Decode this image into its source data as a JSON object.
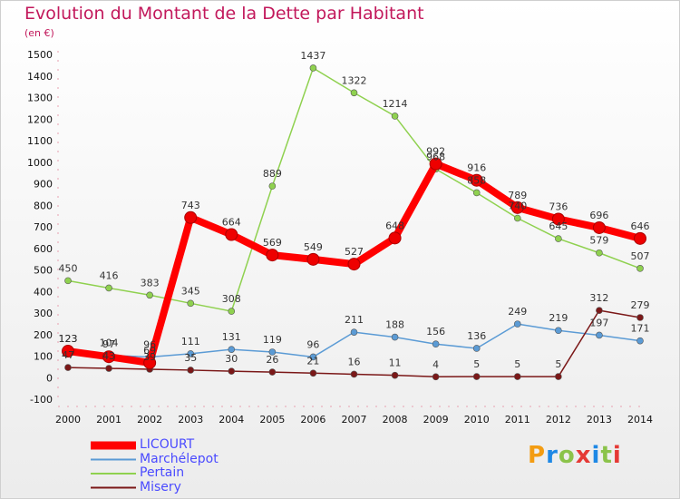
{
  "header": {
    "title": "Evolution du Montant de la Dette par Habitant",
    "subtitle": "(en €)"
  },
  "logo": {
    "text": "Proxiti",
    "letters": [
      "P",
      "r",
      "o",
      "x",
      "i",
      "t",
      "i"
    ],
    "colors": [
      "#f39c12",
      "#1e88e5",
      "#8bc34a",
      "#e53935",
      "#1e88e5",
      "#8bc34a",
      "#e53935"
    ]
  },
  "chart_data": {
    "type": "line",
    "title": "Evolution du Montant de la Dette par Habitant",
    "subtitle": "(en €)",
    "x": [
      "2000",
      "2001",
      "2002",
      "2003",
      "2004",
      "2005",
      "2006",
      "2007",
      "2008",
      "2009",
      "2010",
      "2011",
      "2012",
      "2013",
      "2014"
    ],
    "ylim": [
      -100,
      1500
    ],
    "yticks": [
      -100,
      0,
      100,
      200,
      300,
      400,
      500,
      600,
      700,
      800,
      900,
      1000,
      1100,
      1200,
      1300,
      1400,
      1500
    ],
    "grid": false,
    "legend_position": "bottom-left",
    "series": [
      {
        "name": "LICOURT",
        "color": "#ff0000",
        "values": [
          123,
          97,
          69,
          743,
          664,
          569,
          549,
          527,
          648,
          992,
          916,
          789,
          736,
          696,
          646
        ]
      },
      {
        "name": "Marchélepot",
        "color": "#5b9bd5",
        "values": [
          123,
          104,
          96,
          111,
          131,
          119,
          96,
          211,
          188,
          156,
          136,
          249,
          219,
          197,
          171
        ]
      },
      {
        "name": "Pertain",
        "color": "#8fd14f",
        "values": [
          450,
          416,
          383,
          345,
          308,
          889,
          1437,
          1322,
          1214,
          968,
          858,
          740,
          645,
          579,
          507
        ]
      },
      {
        "name": "Misery",
        "color": "#7b1818",
        "values": [
          47,
          43,
          39,
          35,
          30,
          26,
          21,
          16,
          11,
          4,
          5,
          5,
          5,
          312,
          279
        ]
      }
    ]
  }
}
